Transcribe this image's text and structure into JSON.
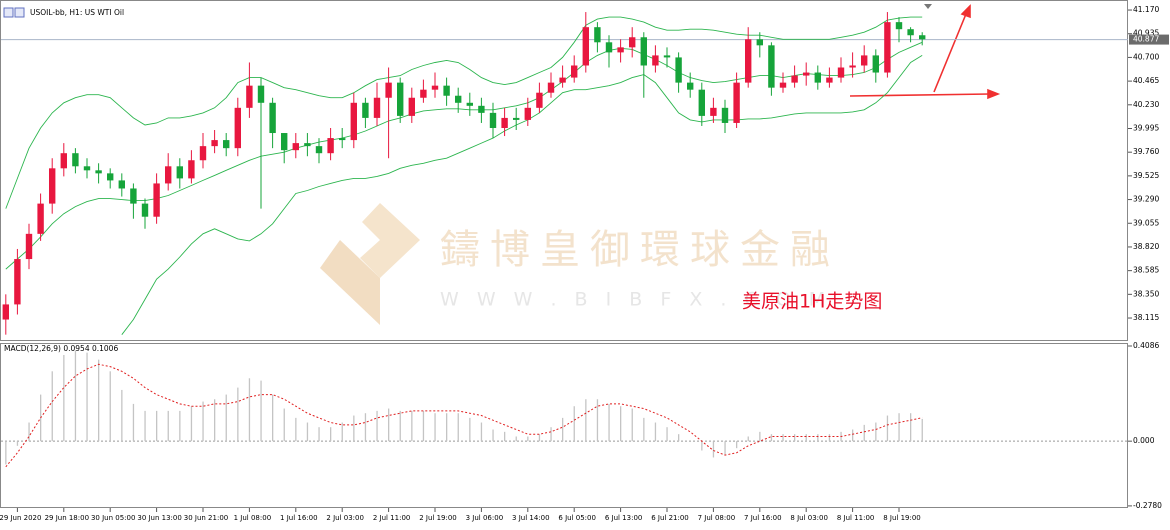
{
  "chart_data": [
    {
      "type": "candlestick",
      "title": "USOIL-bb, H1: US WTI Oil",
      "categories": [
        null,
        "29 Jun 2020",
        null,
        null,
        null,
        "29 Jun 18:00",
        null,
        null,
        null,
        "30 Jun 05:00",
        null,
        null,
        null,
        "30 Jun 13:00",
        null,
        null,
        null,
        "30 Jun 21:00",
        null,
        null,
        null,
        "1 Jul 08:00",
        null,
        null,
        null,
        "1 Jul 16:00",
        null,
        null,
        null,
        "2 Jul 03:00",
        null,
        null,
        null,
        "2 Jul 11:00",
        null,
        null,
        null,
        "2 Jul 19:00",
        null,
        null,
        null,
        "3 Jul 06:00",
        null,
        null,
        null,
        "3 Jul 14:00",
        null,
        null,
        null,
        "6 Jul 05:00",
        null,
        null,
        null,
        "6 Jul 13:00",
        null,
        null,
        null,
        "6 Jul 21:00",
        null,
        null,
        null,
        "7 Jul 08:00",
        null,
        null,
        null,
        "7 Jul 16:00",
        null,
        null,
        null,
        "8 Jul 03:00",
        null,
        null,
        null,
        "8 Jul 11:00",
        null,
        null,
        null,
        "8 Jul 19:00",
        null,
        null
      ],
      "open": [
        38.1,
        38.25,
        38.7,
        38.95,
        39.25,
        39.6,
        39.75,
        39.62,
        39.58,
        39.55,
        39.48,
        39.4,
        39.25,
        39.12,
        39.45,
        39.62,
        39.5,
        39.68,
        39.82,
        39.88,
        39.8,
        40.2,
        40.42,
        40.25,
        39.95,
        39.78,
        39.85,
        39.82,
        39.75,
        39.9,
        39.88,
        40.25,
        40.1,
        40.3,
        40.45,
        40.12,
        40.3,
        40.38,
        40.42,
        40.32,
        40.25,
        40.22,
        40.15,
        40.0,
        40.1,
        40.08,
        40.2,
        40.35,
        40.45,
        40.5,
        40.62,
        41.0,
        40.85,
        40.75,
        40.8,
        40.9,
        40.62,
        40.72,
        40.7,
        40.45,
        40.38,
        40.12,
        40.2,
        40.05,
        40.45,
        40.88,
        40.82,
        40.4,
        40.45,
        40.52,
        40.55,
        40.45,
        40.5,
        40.6,
        40.62,
        40.72,
        40.55,
        41.05,
        40.98,
        40.92
      ],
      "high": [
        38.35,
        38.8,
        39.05,
        39.35,
        39.7,
        39.85,
        39.8,
        39.7,
        39.65,
        39.6,
        39.55,
        39.45,
        39.3,
        39.55,
        39.75,
        39.7,
        39.78,
        39.95,
        39.98,
        39.95,
        40.3,
        40.65,
        40.5,
        40.3,
        39.95,
        39.95,
        39.95,
        39.9,
        40.0,
        40.0,
        40.35,
        40.3,
        40.45,
        40.6,
        40.5,
        40.4,
        40.48,
        40.55,
        40.5,
        40.4,
        40.35,
        40.3,
        40.25,
        40.2,
        40.2,
        40.3,
        40.45,
        40.55,
        40.62,
        40.72,
        41.15,
        41.05,
        40.92,
        40.88,
        41.0,
        40.95,
        40.82,
        40.8,
        40.75,
        40.55,
        40.45,
        40.3,
        40.28,
        40.55,
        41.0,
        40.95,
        40.85,
        40.55,
        40.62,
        40.65,
        40.62,
        40.6,
        40.7,
        40.75,
        40.82,
        40.78,
        41.15,
        41.1,
        41.0,
        40.95
      ],
      "low": [
        37.95,
        38.15,
        38.6,
        38.88,
        39.15,
        39.52,
        39.55,
        39.5,
        39.45,
        39.4,
        39.32,
        39.1,
        39.0,
        39.05,
        39.38,
        39.4,
        39.45,
        39.6,
        39.75,
        39.72,
        39.72,
        40.1,
        39.2,
        39.8,
        39.65,
        39.7,
        39.72,
        39.65,
        39.68,
        39.8,
        39.8,
        40.0,
        40.02,
        39.7,
        40.05,
        40.05,
        40.25,
        40.3,
        40.22,
        40.15,
        40.12,
        40.05,
        39.9,
        39.92,
        39.98,
        40.02,
        40.15,
        40.3,
        40.4,
        40.45,
        40.55,
        40.75,
        40.6,
        40.65,
        40.7,
        40.3,
        40.55,
        40.6,
        40.35,
        40.3,
        40.02,
        40.05,
        39.95,
        40.0,
        40.4,
        40.7,
        40.32,
        40.35,
        40.4,
        40.42,
        40.38,
        40.4,
        40.45,
        40.5,
        40.55,
        40.45,
        40.5,
        40.85,
        40.85,
        40.82
      ],
      "close": [
        38.25,
        38.7,
        38.95,
        39.25,
        39.6,
        39.75,
        39.62,
        39.58,
        39.55,
        39.48,
        39.4,
        39.25,
        39.12,
        39.45,
        39.62,
        39.5,
        39.68,
        39.82,
        39.88,
        39.8,
        40.2,
        40.42,
        40.25,
        39.95,
        39.78,
        39.85,
        39.82,
        39.75,
        39.9,
        39.88,
        40.25,
        40.1,
        40.3,
        40.45,
        40.12,
        40.3,
        40.38,
        40.42,
        40.32,
        40.25,
        40.22,
        40.15,
        40.0,
        40.1,
        40.08,
        40.2,
        40.35,
        40.45,
        40.5,
        40.62,
        41.0,
        40.85,
        40.75,
        40.8,
        40.9,
        40.62,
        40.72,
        40.7,
        40.45,
        40.38,
        40.12,
        40.2,
        40.05,
        40.45,
        40.88,
        40.82,
        40.4,
        40.45,
        40.52,
        40.55,
        40.45,
        40.5,
        40.6,
        40.62,
        40.72,
        40.55,
        41.05,
        40.98,
        40.92,
        40.88
      ],
      "up_color": "#e8173f",
      "down_color": "#16a43a",
      "bands": {
        "color": "#2cb54e",
        "upper": [
          39.2,
          39.5,
          39.8,
          40.0,
          40.15,
          40.25,
          40.3,
          40.33,
          40.33,
          40.3,
          40.2,
          40.1,
          40.03,
          40.05,
          40.1,
          40.1,
          40.12,
          40.15,
          40.2,
          40.3,
          40.45,
          40.5,
          40.5,
          40.45,
          40.4,
          40.38,
          40.35,
          40.32,
          40.3,
          40.3,
          40.35,
          40.42,
          40.48,
          40.5,
          40.52,
          40.58,
          40.62,
          40.65,
          40.67,
          40.65,
          40.58,
          40.5,
          40.45,
          40.43,
          40.45,
          40.5,
          40.55,
          40.6,
          40.7,
          40.85,
          41.02,
          41.08,
          41.1,
          41.1,
          41.08,
          41.05,
          41.0,
          40.97,
          40.97,
          40.98,
          40.98,
          40.97,
          40.95,
          40.93,
          40.92,
          40.92,
          40.9,
          40.88,
          40.88,
          40.88,
          40.88,
          40.88,
          40.9,
          40.92,
          40.95,
          41.0,
          41.07,
          41.09,
          41.1,
          41.1
        ],
        "middle": [
          38.6,
          38.7,
          38.8,
          38.92,
          39.05,
          39.15,
          39.22,
          39.27,
          39.3,
          39.3,
          39.29,
          39.28,
          39.28,
          39.3,
          39.33,
          39.38,
          39.43,
          39.48,
          39.53,
          39.58,
          39.63,
          39.68,
          39.72,
          39.74,
          39.76,
          39.8,
          39.83,
          39.86,
          39.88,
          39.9,
          39.93,
          39.97,
          40.02,
          40.07,
          40.1,
          40.14,
          40.17,
          40.18,
          40.19,
          40.19,
          40.18,
          40.18,
          40.18,
          40.2,
          40.22,
          40.25,
          40.3,
          40.38,
          40.46,
          40.55,
          40.65,
          40.72,
          40.77,
          40.79,
          40.78,
          40.73,
          40.68,
          40.62,
          40.55,
          40.5,
          40.47,
          40.45,
          40.46,
          40.48,
          40.5,
          40.52,
          40.52,
          40.5,
          40.52,
          40.54,
          40.53,
          40.52,
          40.52,
          40.53,
          40.55,
          40.6,
          40.68,
          40.75,
          40.8,
          40.85
        ],
        "lower": [
          null,
          null,
          null,
          null,
          null,
          null,
          null,
          null,
          null,
          null,
          37.95,
          38.1,
          38.3,
          38.5,
          38.6,
          38.72,
          38.85,
          38.95,
          39.0,
          38.95,
          38.9,
          38.88,
          38.95,
          39.05,
          39.2,
          39.35,
          39.38,
          39.42,
          39.45,
          39.48,
          39.5,
          39.5,
          39.52,
          39.55,
          39.6,
          39.63,
          39.65,
          39.68,
          39.7,
          39.75,
          39.8,
          39.85,
          39.9,
          39.97,
          40.03,
          40.08,
          40.15,
          40.25,
          40.35,
          40.38,
          40.38,
          40.4,
          40.42,
          40.45,
          40.5,
          40.53,
          40.45,
          40.3,
          40.15,
          40.08,
          40.06,
          40.08,
          40.08,
          40.08,
          40.09,
          40.09,
          40.1,
          40.12,
          40.14,
          40.15,
          40.15,
          40.15,
          40.15,
          40.16,
          40.18,
          40.25,
          40.35,
          40.5,
          40.65,
          40.72
        ]
      },
      "last_price": 40.877,
      "ylim": [
        37.897,
        41.22
      ],
      "yticks": [
        {
          "value": 41.17,
          "label": "41.170"
        },
        {
          "value": 40.935,
          "label": "40.935"
        },
        {
          "value": 40.7,
          "label": "40.700"
        },
        {
          "value": 40.465,
          "label": "40.465"
        },
        {
          "value": 40.23,
          "label": "40.230"
        },
        {
          "value": 39.995,
          "label": "39.995"
        },
        {
          "value": 39.76,
          "label": "39.760"
        },
        {
          "value": 39.525,
          "label": "39.525"
        },
        {
          "value": 39.29,
          "label": "39.290"
        },
        {
          "value": 39.055,
          "label": "39.055"
        },
        {
          "value": 38.82,
          "label": "38.820"
        },
        {
          "value": 38.585,
          "label": "38.585"
        },
        {
          "value": 38.35,
          "label": "38.350"
        },
        {
          "value": 38.115,
          "label": "38.115"
        }
      ],
      "watermark": {
        "title": "鑄博皇御環球金融",
        "url": "W W W . B I B F X . C O M"
      },
      "annotation": "美原油1H走势图"
    },
    {
      "type": "macd",
      "title": "MACD(12,26,9) 0.0954 0.1006",
      "macd": [
        -0.1,
        -0.02,
        0.08,
        0.2,
        0.3,
        0.37,
        0.39,
        0.38,
        0.35,
        0.3,
        0.22,
        0.16,
        0.13,
        0.13,
        0.13,
        0.13,
        0.15,
        0.17,
        0.18,
        0.2,
        0.23,
        0.27,
        0.26,
        0.2,
        0.14,
        0.1,
        0.08,
        0.06,
        0.06,
        0.08,
        0.11,
        0.12,
        0.13,
        0.14,
        0.13,
        0.13,
        0.13,
        0.12,
        0.12,
        0.12,
        0.1,
        0.08,
        0.05,
        0.04,
        0.02,
        0.02,
        0.03,
        0.06,
        0.1,
        0.15,
        0.18,
        0.18,
        0.16,
        0.15,
        0.14,
        0.1,
        0.08,
        0.06,
        0.03,
        0.0,
        -0.04,
        -0.07,
        -0.06,
        -0.03,
        0.02,
        0.04,
        0.03,
        0.03,
        0.03,
        0.03,
        0.03,
        0.03,
        0.04,
        0.05,
        0.07,
        0.08,
        0.11,
        0.12,
        0.12,
        0.0954
      ],
      "signal": [
        -0.11,
        -0.05,
        0.02,
        0.1,
        0.17,
        0.23,
        0.28,
        0.31,
        0.33,
        0.32,
        0.3,
        0.27,
        0.23,
        0.2,
        0.18,
        0.16,
        0.15,
        0.15,
        0.16,
        0.16,
        0.17,
        0.19,
        0.2,
        0.2,
        0.18,
        0.15,
        0.12,
        0.1,
        0.08,
        0.07,
        0.07,
        0.08,
        0.1,
        0.11,
        0.12,
        0.13,
        0.13,
        0.13,
        0.13,
        0.13,
        0.12,
        0.11,
        0.09,
        0.07,
        0.05,
        0.03,
        0.03,
        0.04,
        0.06,
        0.09,
        0.12,
        0.15,
        0.16,
        0.16,
        0.15,
        0.14,
        0.12,
        0.1,
        0.07,
        0.04,
        0.0,
        -0.04,
        -0.06,
        -0.05,
        -0.02,
        0.0,
        0.02,
        0.02,
        0.02,
        0.02,
        0.02,
        0.02,
        0.02,
        0.03,
        0.04,
        0.05,
        0.07,
        0.08,
        0.09,
        0.1006
      ],
      "hist_color": "#c4c4c4",
      "signal_color": "#e02020",
      "ylim": [
        -0.287,
        0.4215
      ],
      "yticks": [
        0.4086,
        {
          "value": 0,
          "label": "0.000"
        },
        {
          "value": -0.278,
          "label": "-0.2780"
        }
      ]
    }
  ]
}
